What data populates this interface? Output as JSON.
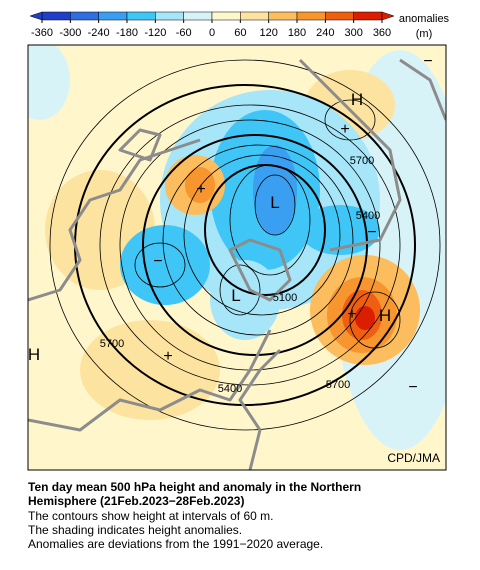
{
  "colorbar": {
    "ticks": [
      -360,
      -300,
      -240,
      -180,
      -120,
      -60,
      0,
      60,
      120,
      180,
      240,
      300,
      360
    ],
    "colors": [
      "#1f3fc8",
      "#2f6fe0",
      "#3a9ff0",
      "#3fc6f6",
      "#a6e6f8",
      "#d6f3f8",
      "#fff8cc",
      "#fde3a0",
      "#fbbd5e",
      "#f7952f",
      "#ef5f12",
      "#dc1e00"
    ],
    "label": "anomalies",
    "unit": "(m)"
  },
  "map": {
    "labels": [
      {
        "text": "H",
        "kind": "center"
      },
      {
        "text": "+",
        "kind": "sign"
      },
      {
        "text": "5700",
        "kind": "contour"
      },
      {
        "text": "+",
        "kind": "sign"
      },
      {
        "text": "L",
        "kind": "center"
      },
      {
        "text": "5400",
        "kind": "contour"
      },
      {
        "text": "−",
        "kind": "sign"
      },
      {
        "text": "−",
        "kind": "sign"
      },
      {
        "text": "L",
        "kind": "center"
      },
      {
        "text": "5100",
        "kind": "contour"
      },
      {
        "text": "+",
        "kind": "sign"
      },
      {
        "text": "H",
        "kind": "center"
      },
      {
        "text": "H",
        "kind": "center"
      },
      {
        "text": "5700",
        "kind": "contour"
      },
      {
        "text": "+",
        "kind": "sign"
      },
      {
        "text": "5400",
        "kind": "contour"
      },
      {
        "text": "5700",
        "kind": "contour"
      },
      {
        "text": "−",
        "kind": "sign"
      },
      {
        "text": "−",
        "kind": "sign"
      }
    ],
    "credit": "CPD/JMA"
  },
  "caption": {
    "title": "Ten day mean 500 hPa height and anomaly in the Northern Hemisphere (21Feb.2023−28Feb.2023)",
    "lines": [
      "The contours show height at intervals of 60 m.",
      "The shading indicates height anomalies.",
      "Anomalies are deviations from the 1991−2020 average."
    ]
  }
}
